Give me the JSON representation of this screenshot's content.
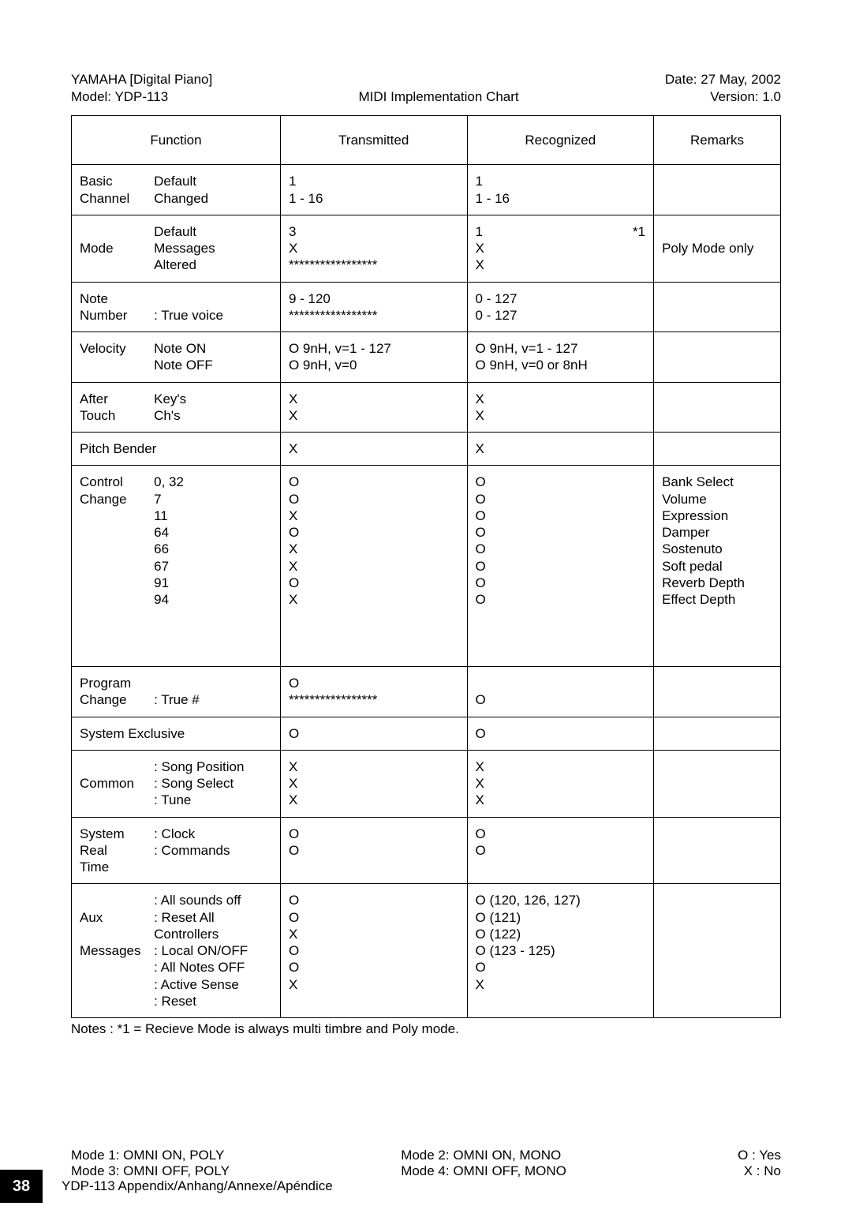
{
  "header": {
    "left_line1": "YAMAHA [Digital Piano]",
    "left_line2": "Model: YDP-113",
    "center_line1": "",
    "center_line2": "MIDI Implementation Chart",
    "right_line1": "Date: 27 May, 2002",
    "right_line2": "Version: 1.0"
  },
  "cols": {
    "func": "Function",
    "tx": "Transmitted",
    "rx": "Recognized",
    "rem": "Remarks"
  },
  "rows": {
    "basic": {
      "a": "Basic\nChannel",
      "b": "Default\nChanged",
      "tx": "1\n1 - 16",
      "rx": "1\n1 - 16",
      "rem": ""
    },
    "mode": {
      "a": "\nMode",
      "b": "Default\nMessages\nAltered",
      "tx": "3\nX\n*****************",
      "rx_main": "1\nX\nX",
      "rx_flag": "*1",
      "rem": "\nPoly Mode only"
    },
    "note": {
      "a": "Note\nNumber",
      "b": "\n: True voice",
      "tx": "9 - 120\n*****************",
      "rx": "0 - 127\n0 - 127",
      "rem": ""
    },
    "vel": {
      "a": "Velocity",
      "b": "Note ON\nNote OFF",
      "tx": "O 9nH, v=1 - 127\nO 9nH, v=0",
      "rx": "O 9nH, v=1 - 127\nO 9nH, v=0 or 8nH",
      "rem": ""
    },
    "after": {
      "a": "After\nTouch",
      "b": "Key's\nCh's",
      "tx": "X\nX",
      "rx": "X\nX",
      "rem": ""
    },
    "pb": {
      "a": "Pitch Bender",
      "b": "",
      "tx": "X",
      "rx": "X",
      "rem": ""
    },
    "cc": {
      "a": "Control Change",
      "nums": "0, 32\n7\n11\n64\n66\n67\n91\n94",
      "tx": "O\nO\nX\nO\nX\nX\nO\nX\n\n\n\n",
      "rx": "O\nO\nO\nO\nO\nO\nO\nO",
      "rem": "Bank Select\nVolume\nExpression\nDamper\nSostenuto\nSoft pedal\nReverb Depth\nEffect Depth"
    },
    "prog": {
      "a": "Program\nChange",
      "b": "\n: True #",
      "tx": "O\n*****************",
      "rx": "\nO",
      "rem": ""
    },
    "sysex": {
      "a": "System Exclusive",
      "b": "",
      "tx": "O",
      "rx": "O",
      "rem": ""
    },
    "common": {
      "a": "\nCommon",
      "b": ": Song Position\n: Song Select\n: Tune",
      "tx": "X\nX\nX",
      "rx": "X\nX\nX",
      "rem": ""
    },
    "sysrt": {
      "a": "System\nReal Time",
      "b": ": Clock\n: Commands",
      "tx": "O\nO",
      "rx": "O\nO",
      "rem": ""
    },
    "aux": {
      "a": "\nAux\n\nMessages",
      "b": ": All sounds off\n: Reset All Controllers\n: Local ON/OFF\n: All Notes OFF\n: Active Sense\n: Reset",
      "tx": "O\nO\nX\nO\nO\nX",
      "rx": "O (120, 126, 127)\nO (121)\nO (122)\nO (123 - 125)\nO\nX",
      "rem": ""
    }
  },
  "notes": "Notes : *1 = Recieve Mode is always multi timbre and Poly mode.",
  "legend": {
    "l": "Mode 1: OMNI ON, POLY\nMode 3: OMNI OFF, POLY",
    "c": "Mode 2: OMNI ON, MONO\nMode 4: OMNI OFF, MONO",
    "r": "O : Yes\nX : No"
  },
  "footer": {
    "page": "38",
    "text": "YDP-113   Appendix/Anhang/Annexe/Apéndice"
  }
}
